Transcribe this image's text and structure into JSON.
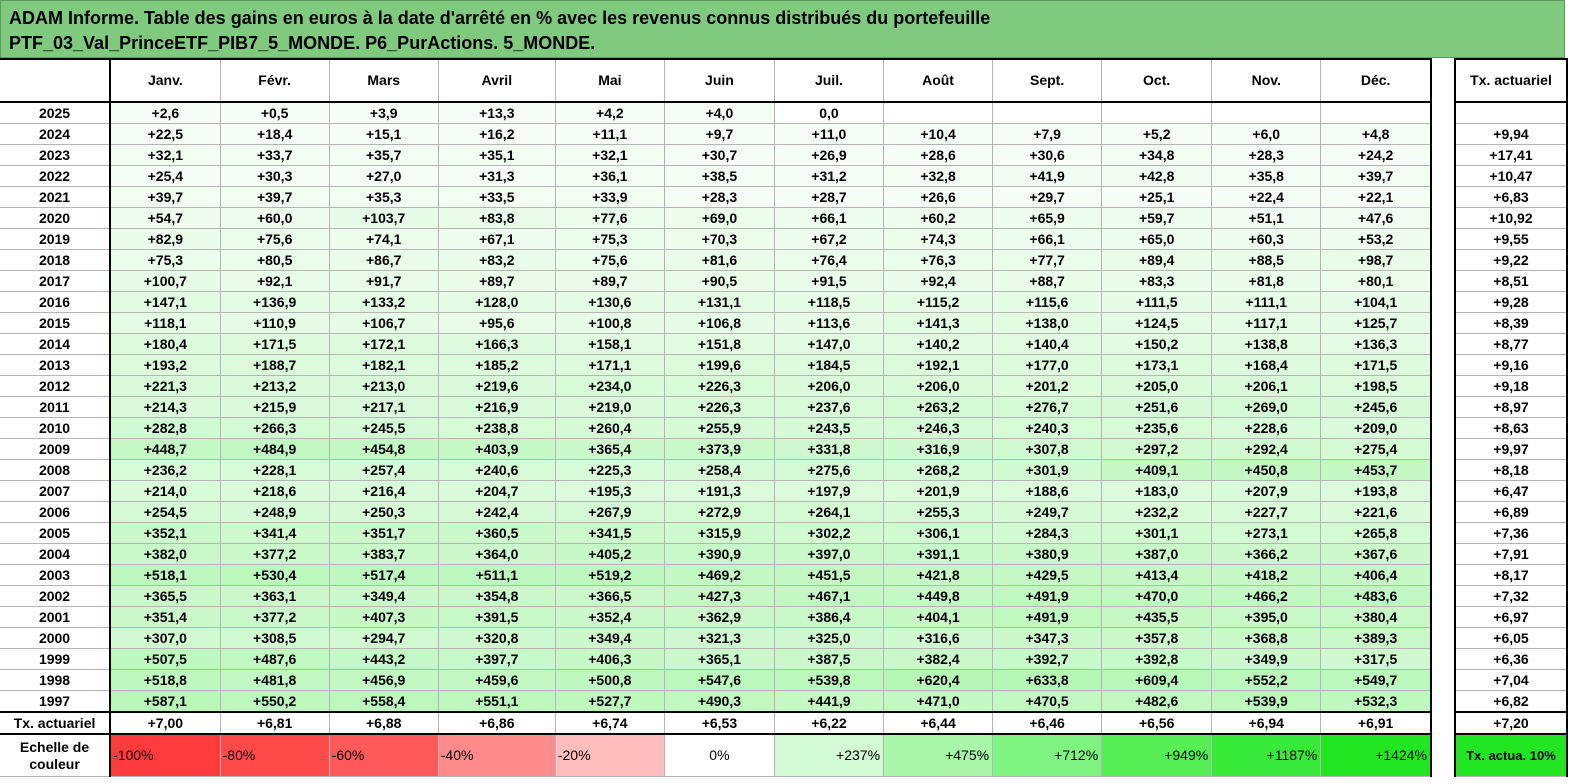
{
  "title": {
    "line1": "ADAM Informe. Table des gains en euros à la date d'arrêté en % avec les revenus connus distribués du portefeuille",
    "line2": "PTF_03_Val_PrinceETF_PIB7_5_MONDE. P6_PurActions. 5_MONDE."
  },
  "months": [
    "Janv.",
    "Févr.",
    "Mars",
    "Avril",
    "Mai",
    "Juin",
    "Juil.",
    "Août",
    "Sept.",
    "Oct.",
    "Nov.",
    "Déc."
  ],
  "side_header": "Tx. actuariel",
  "rows": [
    {
      "year": "2025",
      "values": [
        "+2,6",
        "+0,5",
        "+3,9",
        "+13,3",
        "+4,2",
        "+4,0",
        "0,0",
        "",
        "",
        "",
        "",
        ""
      ],
      "tx": ""
    },
    {
      "year": "2024",
      "values": [
        "+22,5",
        "+18,4",
        "+15,1",
        "+16,2",
        "+11,1",
        "+9,7",
        "+11,0",
        "+10,4",
        "+7,9",
        "+5,2",
        "+6,0",
        "+4,8"
      ],
      "tx": "+9,94"
    },
    {
      "year": "2023",
      "values": [
        "+32,1",
        "+33,7",
        "+35,7",
        "+35,1",
        "+32,1",
        "+30,7",
        "+26,9",
        "+28,6",
        "+30,6",
        "+34,8",
        "+28,3",
        "+24,2"
      ],
      "tx": "+17,41"
    },
    {
      "year": "2022",
      "values": [
        "+25,4",
        "+30,3",
        "+27,0",
        "+31,3",
        "+36,1",
        "+38,5",
        "+31,2",
        "+32,8",
        "+41,9",
        "+42,8",
        "+35,8",
        "+39,7"
      ],
      "tx": "+10,47"
    },
    {
      "year": "2021",
      "values": [
        "+39,7",
        "+39,7",
        "+35,3",
        "+33,5",
        "+33,9",
        "+28,3",
        "+28,7",
        "+26,6",
        "+29,7",
        "+25,1",
        "+22,4",
        "+22,1"
      ],
      "tx": "+6,83"
    },
    {
      "year": "2020",
      "values": [
        "+54,7",
        "+60,0",
        "+103,7",
        "+83,8",
        "+77,6",
        "+69,0",
        "+66,1",
        "+60,2",
        "+65,9",
        "+59,7",
        "+51,1",
        "+47,6"
      ],
      "tx": "+10,92"
    },
    {
      "year": "2019",
      "values": [
        "+82,9",
        "+75,6",
        "+74,1",
        "+67,1",
        "+75,3",
        "+70,3",
        "+67,2",
        "+74,3",
        "+66,1",
        "+65,0",
        "+60,3",
        "+53,2"
      ],
      "tx": "+9,55"
    },
    {
      "year": "2018",
      "values": [
        "+75,3",
        "+80,5",
        "+86,7",
        "+83,2",
        "+75,6",
        "+81,6",
        "+76,4",
        "+76,3",
        "+77,7",
        "+89,4",
        "+88,5",
        "+98,7"
      ],
      "tx": "+9,22"
    },
    {
      "year": "2017",
      "values": [
        "+100,7",
        "+92,1",
        "+91,7",
        "+89,7",
        "+89,7",
        "+90,5",
        "+91,5",
        "+92,4",
        "+88,7",
        "+83,3",
        "+81,8",
        "+80,1"
      ],
      "tx": "+8,51"
    },
    {
      "year": "2016",
      "values": [
        "+147,1",
        "+136,9",
        "+133,2",
        "+128,0",
        "+130,6",
        "+131,1",
        "+118,5",
        "+115,2",
        "+115,6",
        "+111,5",
        "+111,1",
        "+104,1"
      ],
      "tx": "+9,28"
    },
    {
      "year": "2015",
      "values": [
        "+118,1",
        "+110,9",
        "+106,7",
        "+95,6",
        "+100,8",
        "+106,8",
        "+113,6",
        "+141,3",
        "+138,0",
        "+124,5",
        "+117,1",
        "+125,7"
      ],
      "tx": "+8,39"
    },
    {
      "year": "2014",
      "values": [
        "+180,4",
        "+171,5",
        "+172,1",
        "+166,3",
        "+158,1",
        "+151,8",
        "+147,0",
        "+140,2",
        "+140,4",
        "+150,2",
        "+138,8",
        "+136,3"
      ],
      "tx": "+8,77"
    },
    {
      "year": "2013",
      "values": [
        "+193,2",
        "+188,7",
        "+182,1",
        "+185,2",
        "+171,1",
        "+199,6",
        "+184,5",
        "+192,1",
        "+177,0",
        "+173,1",
        "+168,4",
        "+171,5"
      ],
      "tx": "+9,16"
    },
    {
      "year": "2012",
      "values": [
        "+221,3",
        "+213,2",
        "+213,0",
        "+219,6",
        "+234,0",
        "+226,3",
        "+206,0",
        "+206,0",
        "+201,2",
        "+205,0",
        "+206,1",
        "+198,5"
      ],
      "tx": "+9,18"
    },
    {
      "year": "2011",
      "values": [
        "+214,3",
        "+215,9",
        "+217,1",
        "+216,9",
        "+219,0",
        "+226,3",
        "+237,6",
        "+263,2",
        "+276,7",
        "+251,6",
        "+269,0",
        "+245,6"
      ],
      "tx": "+8,97"
    },
    {
      "year": "2010",
      "values": [
        "+282,8",
        "+266,3",
        "+245,5",
        "+238,8",
        "+260,4",
        "+255,9",
        "+243,5",
        "+246,3",
        "+240,3",
        "+235,6",
        "+228,6",
        "+209,0"
      ],
      "tx": "+8,63"
    },
    {
      "year": "2009",
      "values": [
        "+448,7",
        "+484,9",
        "+454,8",
        "+403,9",
        "+365,4",
        "+373,9",
        "+331,8",
        "+316,9",
        "+307,8",
        "+297,2",
        "+292,4",
        "+275,4"
      ],
      "tx": "+9,97"
    },
    {
      "year": "2008",
      "values": [
        "+236,2",
        "+228,1",
        "+257,4",
        "+240,6",
        "+225,3",
        "+258,4",
        "+275,6",
        "+268,2",
        "+301,9",
        "+409,1",
        "+450,8",
        "+453,7"
      ],
      "tx": "+8,18"
    },
    {
      "year": "2007",
      "values": [
        "+214,0",
        "+218,6",
        "+216,4",
        "+204,7",
        "+195,3",
        "+191,3",
        "+197,9",
        "+201,9",
        "+188,6",
        "+183,0",
        "+207,9",
        "+193,8"
      ],
      "tx": "+6,47"
    },
    {
      "year": "2006",
      "values": [
        "+254,5",
        "+248,9",
        "+250,3",
        "+242,4",
        "+267,9",
        "+272,9",
        "+264,1",
        "+255,3",
        "+249,7",
        "+232,2",
        "+227,7",
        "+221,6"
      ],
      "tx": "+6,89"
    },
    {
      "year": "2005",
      "values": [
        "+352,1",
        "+341,4",
        "+351,7",
        "+360,5",
        "+341,5",
        "+315,9",
        "+302,2",
        "+306,1",
        "+284,3",
        "+301,1",
        "+273,1",
        "+265,8"
      ],
      "tx": "+7,36"
    },
    {
      "year": "2004",
      "values": [
        "+382,0",
        "+377,2",
        "+383,7",
        "+364,0",
        "+405,2",
        "+390,9",
        "+397,0",
        "+391,1",
        "+380,9",
        "+387,0",
        "+366,2",
        "+367,6"
      ],
      "tx": "+7,91"
    },
    {
      "year": "2003",
      "values": [
        "+518,1",
        "+530,4",
        "+517,4",
        "+511,1",
        "+519,2",
        "+469,2",
        "+451,5",
        "+421,8",
        "+429,5",
        "+413,4",
        "+418,2",
        "+406,4"
      ],
      "tx": "+8,17"
    },
    {
      "year": "2002",
      "values": [
        "+365,5",
        "+363,1",
        "+349,4",
        "+354,8",
        "+366,5",
        "+427,3",
        "+467,1",
        "+449,8",
        "+491,9",
        "+470,0",
        "+466,2",
        "+483,6"
      ],
      "tx": "+7,32"
    },
    {
      "year": "2001",
      "values": [
        "+351,4",
        "+377,2",
        "+407,3",
        "+391,5",
        "+352,4",
        "+362,9",
        "+386,4",
        "+404,1",
        "+491,9",
        "+435,5",
        "+395,0",
        "+380,4"
      ],
      "tx": "+6,97"
    },
    {
      "year": "2000",
      "values": [
        "+307,0",
        "+308,5",
        "+294,7",
        "+320,8",
        "+349,4",
        "+321,3",
        "+325,0",
        "+316,6",
        "+347,3",
        "+357,8",
        "+368,8",
        "+389,3"
      ],
      "tx": "+6,05"
    },
    {
      "year": "1999",
      "values": [
        "+507,5",
        "+487,6",
        "+443,2",
        "+397,7",
        "+406,3",
        "+365,1",
        "+387,5",
        "+382,4",
        "+392,7",
        "+392,8",
        "+349,9",
        "+317,5"
      ],
      "tx": "+6,36"
    },
    {
      "year": "1998",
      "values": [
        "+518,8",
        "+481,8",
        "+456,9",
        "+459,6",
        "+500,8",
        "+547,6",
        "+539,8",
        "+620,4",
        "+633,8",
        "+609,4",
        "+552,2",
        "+549,7"
      ],
      "tx": "+7,04"
    },
    {
      "year": "1997",
      "values": [
        "+587,1",
        "+550,2",
        "+558,4",
        "+551,1",
        "+527,7",
        "+490,3",
        "+441,9",
        "+471,0",
        "+470,5",
        "+482,6",
        "+539,9",
        "+532,3"
      ],
      "tx": "+6,82"
    }
  ],
  "tx_row": {
    "label": "Tx. actuariel",
    "values": [
      "+7,00",
      "+6,81",
      "+6,88",
      "+6,86",
      "+6,74",
      "+6,53",
      "+6,22",
      "+6,44",
      "+6,46",
      "+6,56",
      "+6,94",
      "+6,91"
    ],
    "tx": "+7,20"
  },
  "legend": {
    "label": "Echelle de couleur",
    "items": [
      {
        "text": "-100%",
        "color": "#ff3b3b"
      },
      {
        "text": "-80%",
        "color": "#ff4a4a"
      },
      {
        "text": "-60%",
        "color": "#ff5a5a"
      },
      {
        "text": "-40%",
        "color": "#ff8a8a"
      },
      {
        "text": "-20%",
        "color": "#ffbdbd"
      },
      {
        "text": "0%",
        "color": "#ffffff"
      },
      {
        "text": "+237%",
        "color": "#d3fbd3"
      },
      {
        "text": "+475%",
        "color": "#a9f7a9"
      },
      {
        "text": "+712%",
        "color": "#7ff37f"
      },
      {
        "text": "+949%",
        "color": "#55ee55"
      },
      {
        "text": "+1187%",
        "color": "#37ea37"
      },
      {
        "text": "+1424%",
        "color": "#22e622"
      }
    ],
    "side_text": "Tx. actua. 10%",
    "side_color": "#22e622"
  },
  "colors": {
    "header_bg": "#7fca7f",
    "zero": "#ffffff",
    "max_green": "#22e622"
  }
}
